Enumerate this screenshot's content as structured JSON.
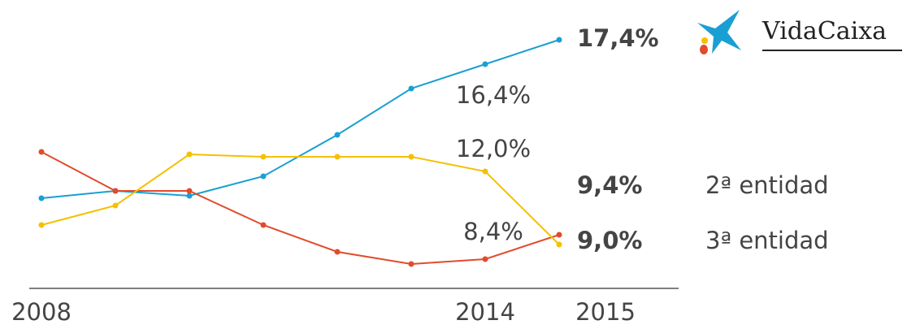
{
  "chart_data": {
    "type": "line",
    "categories": [
      "2008",
      null,
      null,
      null,
      null,
      null,
      "2014",
      "2015"
    ],
    "ylim": [
      7,
      18.5
    ],
    "series": [
      {
        "name": "VidaCaixa",
        "color": "#1a9fd4",
        "values": [
          10.9,
          11.2,
          11.0,
          11.8,
          13.5,
          15.4,
          16.4,
          17.4
        ],
        "value_labels": [
          null,
          null,
          null,
          null,
          null,
          null,
          "16,4%",
          "17,4%"
        ]
      },
      {
        "name": "2ª entidad",
        "color": "#e24b2b",
        "values": [
          12.8,
          11.2,
          11.2,
          9.8,
          8.7,
          8.2,
          8.4,
          9.4
        ],
        "value_labels": [
          null,
          null,
          null,
          null,
          null,
          null,
          "8,4%",
          "9,4%"
        ]
      },
      {
        "name": "3ª entidad",
        "color": "#f5c000",
        "values": [
          9.8,
          10.6,
          12.7,
          12.6,
          12.6,
          12.6,
          12.0,
          9.0
        ],
        "value_labels": [
          null,
          null,
          null,
          null,
          null,
          null,
          "12,0%",
          "9,0%"
        ]
      }
    ]
  }
}
